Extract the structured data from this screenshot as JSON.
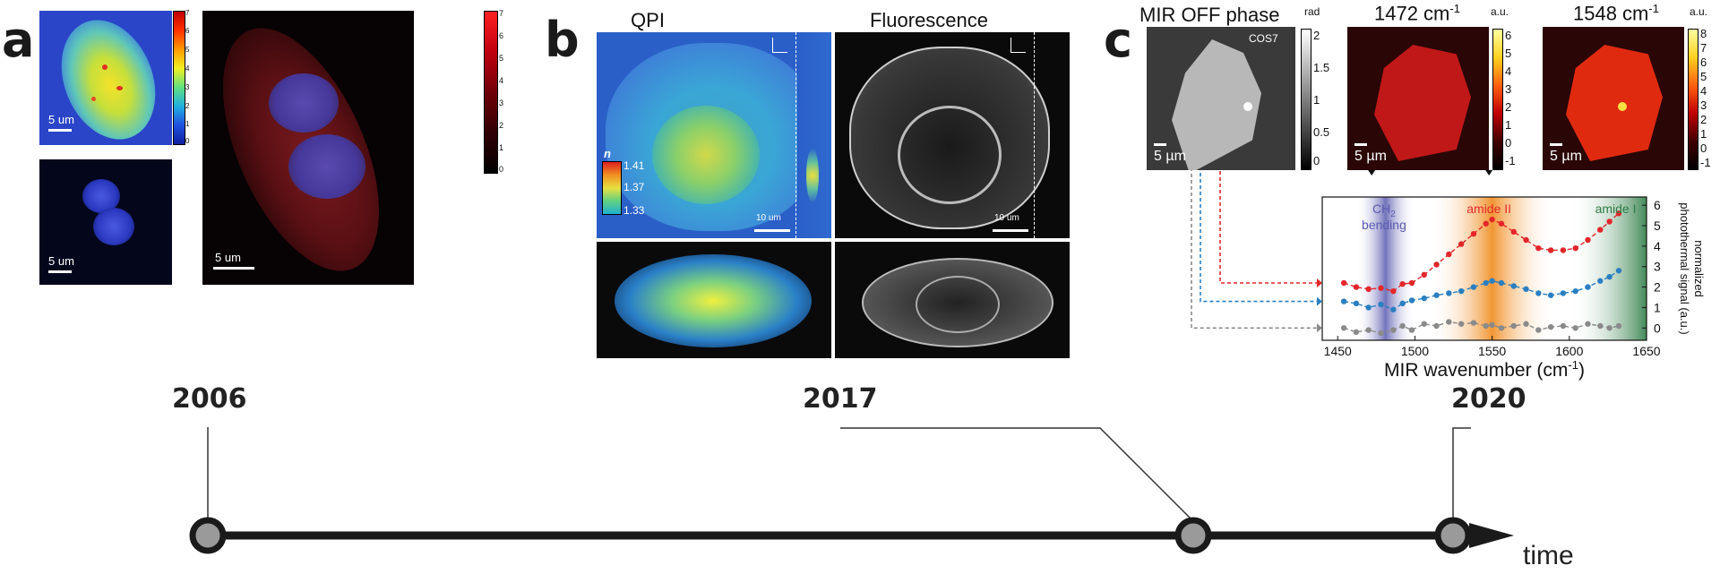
{
  "panels": {
    "a": "a",
    "b": "b",
    "c": "c"
  },
  "panel_a": {
    "scale_top": "5 um",
    "scale_bottom": "5 um",
    "scale_right": "5 um",
    "cbar_small_ticks": [
      "7",
      "6",
      "5",
      "4",
      "3",
      "2",
      "1",
      "0"
    ],
    "cbar_big_ticks": [
      "7",
      "6",
      "5",
      "4",
      "3",
      "2",
      "1",
      "0"
    ]
  },
  "panel_b": {
    "title_left": "QPI",
    "title_right": "Fluorescence",
    "n_label": "n",
    "n_ticks": [
      "1.41",
      "1.37",
      "1.33"
    ],
    "scale_left": "10 um",
    "scale_right": "10 um"
  },
  "panel_c": {
    "title_phase": "MIR OFF phase",
    "unit_phase": "rad",
    "cell_label": "COS7",
    "phase_ticks": [
      "2",
      "1.5",
      "1",
      "0.5",
      "0"
    ],
    "scale_phase": "5 µm",
    "title_1472": "1472 cm",
    "title_1472_sup": "-1",
    "unit_1472": "a.u.",
    "ticks_1472": [
      "6",
      "5",
      "4",
      "3",
      "2",
      "1",
      "0",
      "-1"
    ],
    "scale_1472": "5 µm",
    "title_1548": "1548 cm",
    "title_1548_sup": "-1",
    "unit_1548": "a.u.",
    "ticks_1548": [
      "8",
      "7",
      "6",
      "5",
      "4",
      "3",
      "2",
      "1",
      "0",
      "-1"
    ],
    "scale_1548": "5 µm",
    "band_ch2_line1": "CH",
    "band_ch2_sub": "2",
    "band_ch2_line2": "bending",
    "band_amide2": "amide II",
    "band_amide1": "amide I",
    "colors": {
      "red": "#e3262a",
      "blue": "#2a7fc1",
      "gray": "#8a8a8a",
      "ch2": "#5a5ab0",
      "amide2": "#f08a1c",
      "amide1": "#2e7d46"
    }
  },
  "chart_data": {
    "type": "line",
    "xlabel": "MIR wavenumber (cm-1)",
    "xlabel_parts": {
      "main": "MIR wavenumber (cm",
      "sup": "-1",
      "close": ")"
    },
    "ylabel": "normalized photothermal signal (a.u.)",
    "ylabel_line1": "normalized",
    "ylabel_line2": "photothermal signal (a.u.)",
    "xlim": [
      1440,
      1650
    ],
    "ylim": [
      -0.6,
      6.4
    ],
    "xticks": [
      1450,
      1500,
      1550,
      1600,
      1650
    ],
    "yticks": [
      0,
      1,
      2,
      3,
      4,
      5,
      6
    ],
    "series": [
      {
        "color": "red",
        "x": [
          1454,
          1462,
          1470,
          1478,
          1486,
          1492,
          1498,
          1506,
          1514,
          1522,
          1530,
          1538,
          1546,
          1550,
          1556,
          1564,
          1572,
          1580,
          1588,
          1596,
          1604,
          1612,
          1620,
          1626,
          1632
        ],
        "y": [
          2.2,
          2.0,
          1.9,
          1.95,
          1.8,
          2.15,
          2.2,
          2.6,
          3.1,
          3.6,
          4.1,
          4.6,
          5.1,
          5.3,
          5.1,
          4.7,
          4.3,
          3.9,
          3.8,
          3.8,
          3.9,
          4.3,
          4.8,
          5.2,
          5.6
        ]
      },
      {
        "color": "blue",
        "x": [
          1454,
          1462,
          1470,
          1478,
          1486,
          1492,
          1498,
          1506,
          1514,
          1522,
          1530,
          1538,
          1546,
          1550,
          1556,
          1564,
          1572,
          1580,
          1588,
          1596,
          1604,
          1612,
          1620,
          1626,
          1632
        ],
        "y": [
          1.3,
          1.2,
          1.0,
          1.15,
          0.9,
          1.2,
          1.35,
          1.45,
          1.6,
          1.7,
          1.8,
          2.0,
          2.2,
          2.3,
          2.2,
          2.05,
          1.9,
          1.7,
          1.6,
          1.7,
          1.8,
          2.0,
          2.3,
          2.5,
          2.8
        ]
      },
      {
        "color": "gray",
        "x": [
          1454,
          1462,
          1470,
          1478,
          1486,
          1492,
          1498,
          1506,
          1514,
          1522,
          1530,
          1538,
          1546,
          1550,
          1556,
          1564,
          1572,
          1580,
          1588,
          1596,
          1604,
          1612,
          1620,
          1626,
          1632
        ],
        "y": [
          0.0,
          -0.2,
          -0.1,
          -0.25,
          -0.1,
          0.1,
          -0.1,
          0.2,
          0.1,
          0.3,
          0.2,
          0.25,
          0.1,
          0.15,
          0.0,
          0.1,
          0.2,
          -0.1,
          0.05,
          0.1,
          0.0,
          0.2,
          0.1,
          0.0,
          0.1
        ]
      }
    ]
  },
  "timeline": {
    "years": [
      "2006",
      "2017",
      "2020"
    ],
    "axis_label": "time"
  }
}
